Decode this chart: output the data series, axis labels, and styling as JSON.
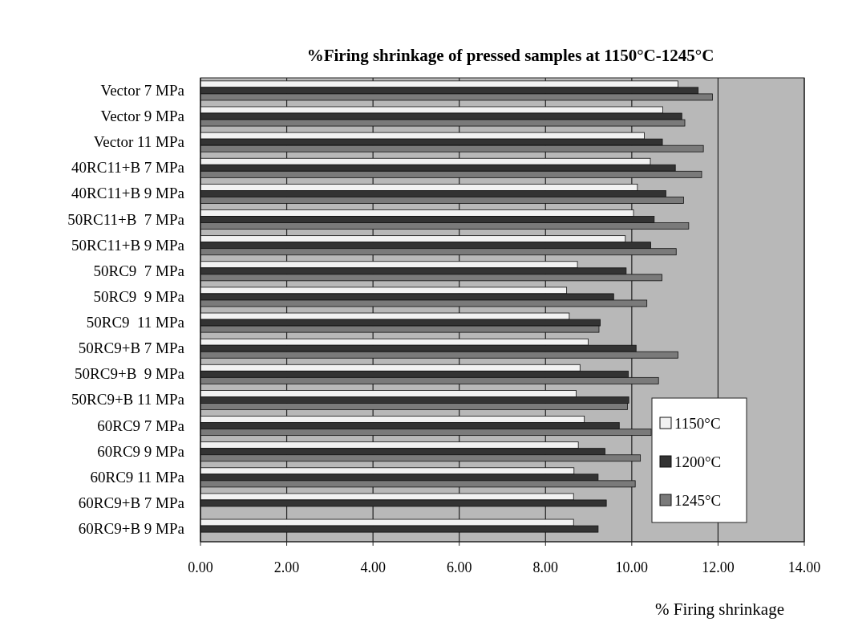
{
  "chart_data": {
    "type": "bar",
    "orientation": "horizontal",
    "title": "%Firing shrinkage of pressed samples at 1150°C-1245°C",
    "xlabel": "% Firing shrinkage",
    "categories": [
      "Vector 7 MPa",
      "Vector 9 MPa",
      "Vector 11 MPa",
      "40RC11+B 7 MPa",
      "40RC11+B 9 MPa",
      "50RC11+B  7 MPa",
      "50RC11+B 9 MPa",
      "50RC9  7 MPa",
      "50RC9  9 MPa",
      "50RC9  11 MPa",
      "50RC9+B 7 MPa",
      "50RC9+B  9 MPa",
      "50RC9+B 11 MPa",
      "60RC9 7 MPa",
      "60RC9 9 MPa",
      "60RC9 11 MPa",
      "60RC9+B 7 MPa",
      "60RC9+B 9 MPa"
    ],
    "series": [
      {
        "name": "1150°C",
        "color": "#f2f2f2",
        "values": [
          11.07,
          10.72,
          10.29,
          10.43,
          10.13,
          10.04,
          9.85,
          8.74,
          8.49,
          8.55,
          8.99,
          8.8,
          8.71,
          8.9,
          8.76,
          8.66,
          8.65,
          8.65
        ]
      },
      {
        "name": "1200°C",
        "color": "#333333",
        "values": [
          11.54,
          11.16,
          10.71,
          11.01,
          10.79,
          10.52,
          10.44,
          9.87,
          9.58,
          9.27,
          10.1,
          9.92,
          9.93,
          9.71,
          9.38,
          9.22,
          9.41,
          9.22
        ]
      },
      {
        "name": "1245°C",
        "color": "#7a7a7a",
        "values": [
          11.87,
          11.23,
          11.66,
          11.62,
          11.2,
          11.32,
          11.03,
          10.7,
          10.35,
          9.24,
          11.07,
          10.62,
          9.9,
          10.45,
          10.2,
          10.08,
          null,
          null
        ]
      }
    ],
    "xlim": [
      0,
      14
    ],
    "xticks": [
      {
        "value": 0,
        "label": "0.00"
      },
      {
        "value": 2,
        "label": "2.00"
      },
      {
        "value": 4,
        "label": "4.00"
      },
      {
        "value": 6,
        "label": "6.00"
      },
      {
        "value": 8,
        "label": "8.00"
      },
      {
        "value": 10,
        "label": "10.00"
      },
      {
        "value": 12,
        "label": "12.00"
      },
      {
        "value": 14,
        "label": "14.00"
      }
    ],
    "grid": "x",
    "legend": "bottom right"
  }
}
